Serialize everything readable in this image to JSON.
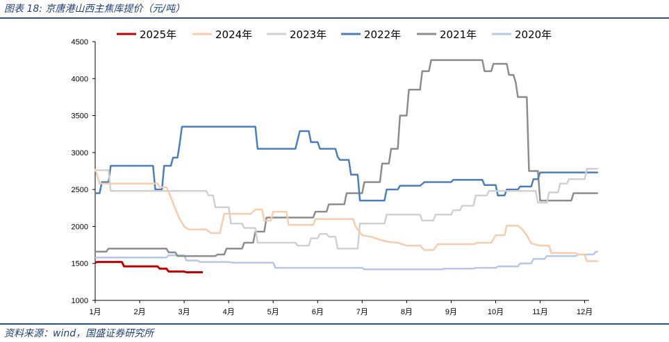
{
  "header": {
    "title": "图表 18:  京唐港山西主焦库提价（元/吨）"
  },
  "footer": {
    "source": "资料来源：wind，国盛证券研究所"
  },
  "chart_data": {
    "type": "line",
    "title": "图表 18:  京唐港山西主焦库提价（元/吨）",
    "xlabel": "",
    "ylabel": "",
    "x_ticks": [
      "1月",
      "2月",
      "3月",
      "4月",
      "5月",
      "6月",
      "7月",
      "8月",
      "9月",
      "10月",
      "11月",
      "12月"
    ],
    "y_ticks": [
      1000,
      1500,
      2000,
      2500,
      3000,
      3500,
      4000,
      4500
    ],
    "ylim": [
      1000,
      4500
    ],
    "xlim": [
      1,
      12.1
    ],
    "grid": false,
    "legend_position": "top",
    "series": [
      {
        "name": "2025年",
        "color": "#c00000",
        "points": [
          [
            1,
            1510
          ],
          [
            1.05,
            1520
          ],
          [
            1.6,
            1520
          ],
          [
            1.65,
            1460
          ],
          [
            2.4,
            1460
          ],
          [
            2.45,
            1430
          ],
          [
            2.6,
            1430
          ],
          [
            2.65,
            1390
          ],
          [
            3.0,
            1390
          ],
          [
            3.05,
            1380
          ],
          [
            3.42,
            1380
          ]
        ]
      },
      {
        "name": "2024年",
        "color": "#f8cbad",
        "points": [
          [
            1,
            2780
          ],
          [
            1.1,
            2580
          ],
          [
            2.4,
            2580
          ],
          [
            2.45,
            2530
          ],
          [
            2.6,
            2530
          ],
          [
            2.7,
            2400
          ],
          [
            2.8,
            2240
          ],
          [
            2.9,
            2100
          ],
          [
            3.0,
            2000
          ],
          [
            3.1,
            1960
          ],
          [
            3.5,
            1960
          ],
          [
            3.6,
            1910
          ],
          [
            3.8,
            1910
          ],
          [
            3.9,
            2170
          ],
          [
            4.5,
            2170
          ],
          [
            4.6,
            2230
          ],
          [
            4.75,
            2230
          ],
          [
            4.8,
            2080
          ],
          [
            4.95,
            2080
          ],
          [
            5.0,
            2200
          ],
          [
            5.3,
            2200
          ],
          [
            5.35,
            2020
          ],
          [
            5.9,
            2020
          ],
          [
            5.95,
            2100
          ],
          [
            6.8,
            2100
          ],
          [
            6.85,
            2000
          ],
          [
            7.0,
            1880
          ],
          [
            7.2,
            1860
          ],
          [
            7.4,
            1820
          ],
          [
            7.6,
            1790
          ],
          [
            7.8,
            1780
          ],
          [
            8.0,
            1740
          ],
          [
            8.3,
            1740
          ],
          [
            8.4,
            1680
          ],
          [
            8.6,
            1680
          ],
          [
            8.7,
            1760
          ],
          [
            9.0,
            1760
          ],
          [
            9.5,
            1760
          ],
          [
            9.6,
            1780
          ],
          [
            9.9,
            1780
          ],
          [
            10.0,
            1880
          ],
          [
            10.2,
            1880
          ],
          [
            10.25,
            2010
          ],
          [
            10.5,
            2010
          ],
          [
            10.6,
            1960
          ],
          [
            10.7,
            1880
          ],
          [
            10.8,
            1770
          ],
          [
            11.0,
            1740
          ],
          [
            11.2,
            1740
          ],
          [
            11.25,
            1640
          ],
          [
            11.8,
            1640
          ],
          [
            11.85,
            1620
          ],
          [
            12.0,
            1620
          ],
          [
            12.05,
            1530
          ],
          [
            12.3,
            1530
          ]
        ]
      },
      {
        "name": "2023年",
        "color": "#d0d0d0",
        "points": [
          [
            1,
            2760
          ],
          [
            1.3,
            2760
          ],
          [
            1.35,
            2480
          ],
          [
            3.0,
            2480
          ],
          [
            3.5,
            2480
          ],
          [
            3.55,
            2420
          ],
          [
            3.65,
            2420
          ],
          [
            3.7,
            2260
          ],
          [
            4.0,
            2260
          ],
          [
            4.05,
            2040
          ],
          [
            4.3,
            2040
          ],
          [
            4.35,
            1980
          ],
          [
            4.6,
            1980
          ],
          [
            4.65,
            1780
          ],
          [
            5.5,
            1780
          ],
          [
            5.55,
            1740
          ],
          [
            5.8,
            1740
          ],
          [
            5.85,
            1840
          ],
          [
            6.0,
            1840
          ],
          [
            6.05,
            1900
          ],
          [
            6.2,
            1900
          ],
          [
            6.25,
            1860
          ],
          [
            6.4,
            1860
          ],
          [
            6.45,
            1700
          ],
          [
            6.9,
            1700
          ],
          [
            6.95,
            2040
          ],
          [
            7.5,
            2040
          ],
          [
            7.55,
            2160
          ],
          [
            8.3,
            2160
          ],
          [
            8.35,
            2080
          ],
          [
            8.6,
            2080
          ],
          [
            8.65,
            2160
          ],
          [
            9.0,
            2160
          ],
          [
            9.05,
            2220
          ],
          [
            9.2,
            2220
          ],
          [
            9.25,
            2280
          ],
          [
            9.5,
            2280
          ],
          [
            9.55,
            2420
          ],
          [
            9.8,
            2420
          ],
          [
            9.85,
            2480
          ],
          [
            10.9,
            2480
          ],
          [
            10.95,
            2320
          ],
          [
            11.15,
            2320
          ],
          [
            11.2,
            2460
          ],
          [
            11.4,
            2460
          ],
          [
            11.45,
            2580
          ],
          [
            11.6,
            2580
          ],
          [
            11.65,
            2640
          ],
          [
            12.0,
            2640
          ],
          [
            12.05,
            2780
          ],
          [
            12.3,
            2780
          ]
        ]
      },
      {
        "name": "2022年",
        "color": "#4a7ebb",
        "points": [
          [
            1,
            2450
          ],
          [
            1.1,
            2450
          ],
          [
            1.15,
            2600
          ],
          [
            1.3,
            2600
          ],
          [
            1.35,
            2820
          ],
          [
            2.3,
            2820
          ],
          [
            2.35,
            2500
          ],
          [
            2.5,
            2500
          ],
          [
            2.55,
            2820
          ],
          [
            2.7,
            2820
          ],
          [
            2.75,
            2930
          ],
          [
            2.85,
            2930
          ],
          [
            2.9,
            3120
          ],
          [
            2.95,
            3350
          ],
          [
            3.5,
            3350
          ],
          [
            4.6,
            3350
          ],
          [
            4.65,
            3050
          ],
          [
            5.5,
            3050
          ],
          [
            5.6,
            3290
          ],
          [
            5.8,
            3290
          ],
          [
            5.85,
            3140
          ],
          [
            6.0,
            3140
          ],
          [
            6.05,
            3050
          ],
          [
            6.4,
            3050
          ],
          [
            6.45,
            2940
          ],
          [
            6.5,
            2900
          ],
          [
            6.7,
            2900
          ],
          [
            6.75,
            2700
          ],
          [
            6.9,
            2700
          ],
          [
            6.95,
            2350
          ],
          [
            7.5,
            2350
          ],
          [
            7.55,
            2500
          ],
          [
            7.8,
            2500
          ],
          [
            7.85,
            2550
          ],
          [
            8.3,
            2550
          ],
          [
            8.4,
            2600
          ],
          [
            9.0,
            2600
          ],
          [
            9.05,
            2630
          ],
          [
            9.7,
            2630
          ],
          [
            9.75,
            2560
          ],
          [
            10.0,
            2560
          ],
          [
            10.05,
            2420
          ],
          [
            10.2,
            2420
          ],
          [
            10.25,
            2500
          ],
          [
            10.5,
            2500
          ],
          [
            10.55,
            2540
          ],
          [
            10.8,
            2540
          ],
          [
            10.85,
            2640
          ],
          [
            10.95,
            2640
          ],
          [
            11.0,
            2730
          ],
          [
            11.1,
            2730
          ],
          [
            11.15,
            2730
          ],
          [
            12.3,
            2730
          ]
        ]
      },
      {
        "name": "2021年",
        "color": "#8c8c8c",
        "points": [
          [
            1,
            1660
          ],
          [
            1.25,
            1660
          ],
          [
            1.3,
            1700
          ],
          [
            2.6,
            1700
          ],
          [
            2.65,
            1650
          ],
          [
            2.8,
            1650
          ],
          [
            2.85,
            1600
          ],
          [
            3.1,
            1600
          ],
          [
            3.7,
            1600
          ],
          [
            3.75,
            1620
          ],
          [
            3.9,
            1620
          ],
          [
            3.95,
            1700
          ],
          [
            4.3,
            1700
          ],
          [
            4.35,
            1780
          ],
          [
            4.55,
            1780
          ],
          [
            4.6,
            1930
          ],
          [
            4.8,
            1930
          ],
          [
            4.85,
            2120
          ],
          [
            5.9,
            2120
          ],
          [
            5.95,
            2200
          ],
          [
            6.2,
            2200
          ],
          [
            6.25,
            2300
          ],
          [
            6.6,
            2300
          ],
          [
            6.65,
            2450
          ],
          [
            7.0,
            2450
          ],
          [
            7.05,
            2600
          ],
          [
            7.4,
            2600
          ],
          [
            7.45,
            2850
          ],
          [
            7.6,
            2850
          ],
          [
            7.65,
            3050
          ],
          [
            7.8,
            3050
          ],
          [
            7.85,
            3500
          ],
          [
            8.0,
            3500
          ],
          [
            8.05,
            3850
          ],
          [
            8.3,
            3850
          ],
          [
            8.35,
            4100
          ],
          [
            8.5,
            4100
          ],
          [
            8.55,
            4250
          ],
          [
            9.7,
            4250
          ],
          [
            9.75,
            4100
          ],
          [
            9.9,
            4100
          ],
          [
            9.95,
            4200
          ],
          [
            10.25,
            4200
          ],
          [
            10.3,
            4050
          ],
          [
            10.4,
            4050
          ],
          [
            10.45,
            3950
          ],
          [
            10.5,
            3750
          ],
          [
            10.7,
            3750
          ],
          [
            10.75,
            2750
          ],
          [
            10.95,
            2750
          ],
          [
            11.0,
            2350
          ],
          [
            11.7,
            2350
          ],
          [
            11.75,
            2450
          ],
          [
            12.3,
            2450
          ]
        ]
      },
      {
        "name": "2020年",
        "color": "#b4c7e7",
        "points": [
          [
            1,
            1580
          ],
          [
            2.6,
            1580
          ],
          [
            2.65,
            1610
          ],
          [
            3.0,
            1610
          ],
          [
            3.05,
            1540
          ],
          [
            3.3,
            1540
          ],
          [
            3.35,
            1520
          ],
          [
            4.0,
            1520
          ],
          [
            4.1,
            1510
          ],
          [
            5.0,
            1510
          ],
          [
            5.05,
            1440
          ],
          [
            7.0,
            1440
          ],
          [
            7.05,
            1420
          ],
          [
            8.8,
            1420
          ],
          [
            8.85,
            1430
          ],
          [
            9.5,
            1430
          ],
          [
            9.55,
            1440
          ],
          [
            10.0,
            1440
          ],
          [
            10.05,
            1460
          ],
          [
            10.5,
            1460
          ],
          [
            10.55,
            1500
          ],
          [
            10.8,
            1500
          ],
          [
            10.85,
            1560
          ],
          [
            11.1,
            1560
          ],
          [
            11.15,
            1600
          ],
          [
            11.8,
            1600
          ],
          [
            11.85,
            1620
          ],
          [
            12.2,
            1620
          ],
          [
            12.25,
            1660
          ],
          [
            12.3,
            1660
          ]
        ]
      }
    ]
  }
}
